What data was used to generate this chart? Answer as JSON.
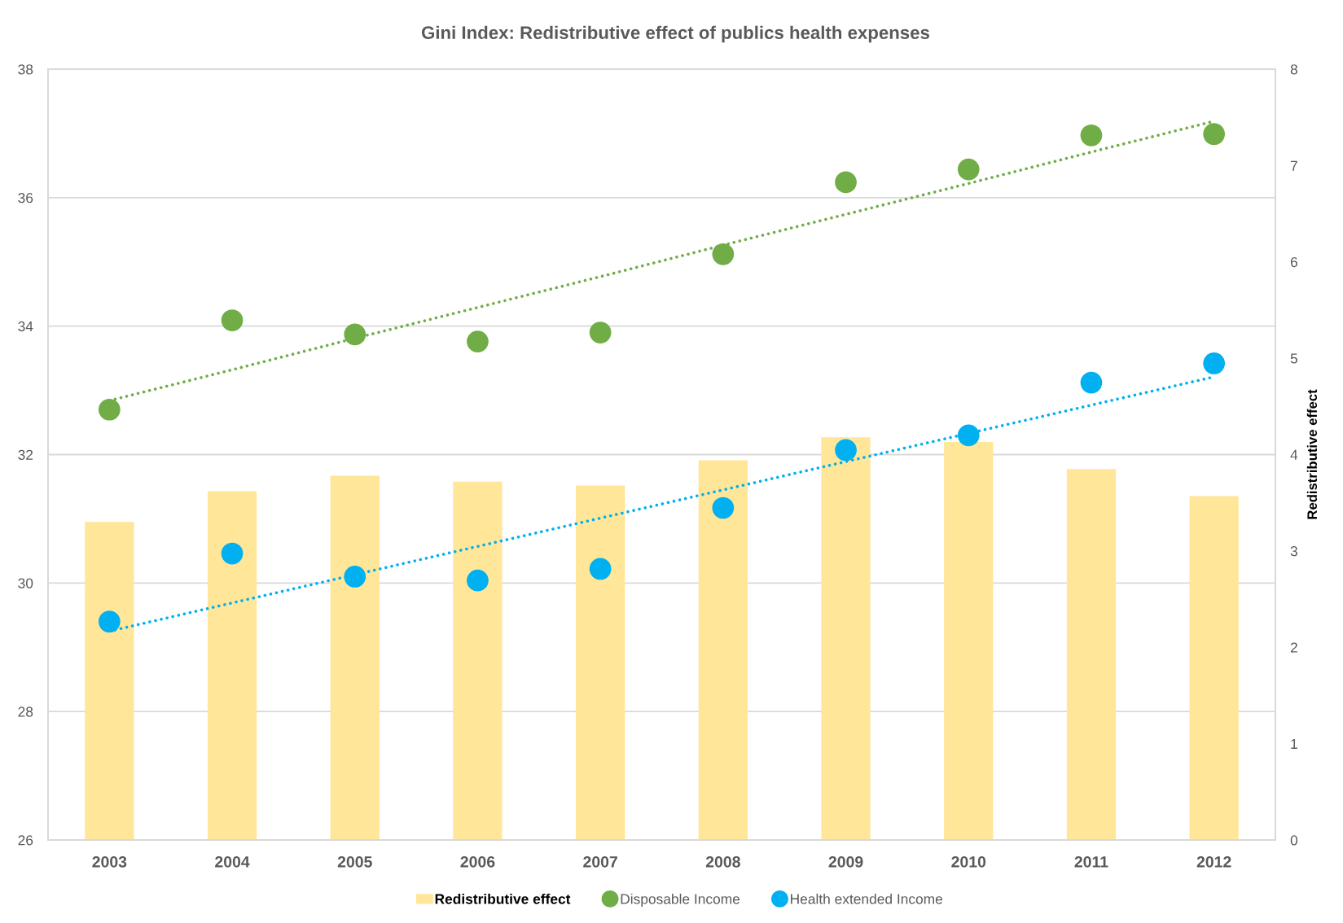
{
  "chart_data": {
    "type": "bar",
    "title": "Gini Index: Redistributive effect of publics health expenses",
    "y2label": "Redistributive effect",
    "categories": [
      "2003",
      "2004",
      "2005",
      "2006",
      "2007",
      "2008",
      "2009",
      "2010",
      "2011",
      "2012"
    ],
    "series": [
      {
        "name": "Redistributive effect",
        "axis": "y2",
        "color": "#ffe699",
        "values": [
          3.3,
          3.62,
          3.78,
          3.72,
          3.68,
          3.94,
          4.18,
          4.13,
          3.85,
          3.57
        ]
      },
      {
        "name": "Disposable Income",
        "type": "scatter",
        "color": "#70ad47",
        "values": [
          32.7,
          34.09,
          33.87,
          33.76,
          33.9,
          35.12,
          36.24,
          36.44,
          36.97,
          36.99
        ]
      },
      {
        "name": "Health extended Income",
        "type": "scatter",
        "color": "#00b0f0",
        "values": [
          29.4,
          30.46,
          30.1,
          30.04,
          30.22,
          31.17,
          32.07,
          32.3,
          33.12,
          33.42
        ]
      },
      {
        "type": "line",
        "color": "#70ad47",
        "line_style": "dotted",
        "marker": "none",
        "values": [
          32.84,
          33.32,
          33.81,
          34.29,
          34.77,
          35.26,
          35.74,
          36.22,
          36.71,
          37.19
        ]
      },
      {
        "type": "line",
        "color": "#00b0f0",
        "line_style": "dotted",
        "marker": "none",
        "values": [
          29.25,
          29.69,
          30.13,
          30.57,
          31.01,
          31.45,
          31.89,
          32.33,
          32.77,
          33.21
        ]
      }
    ],
    "ylim": [
      26,
      38
    ],
    "yticks": [
      26,
      28,
      30,
      32,
      34,
      36,
      38
    ],
    "y2lim": [
      0,
      8
    ],
    "y2ticks": [
      0,
      1,
      2,
      3,
      4,
      5,
      6,
      7,
      8
    ],
    "grid": "y",
    "legend": "bottom",
    "marker": "circle"
  }
}
